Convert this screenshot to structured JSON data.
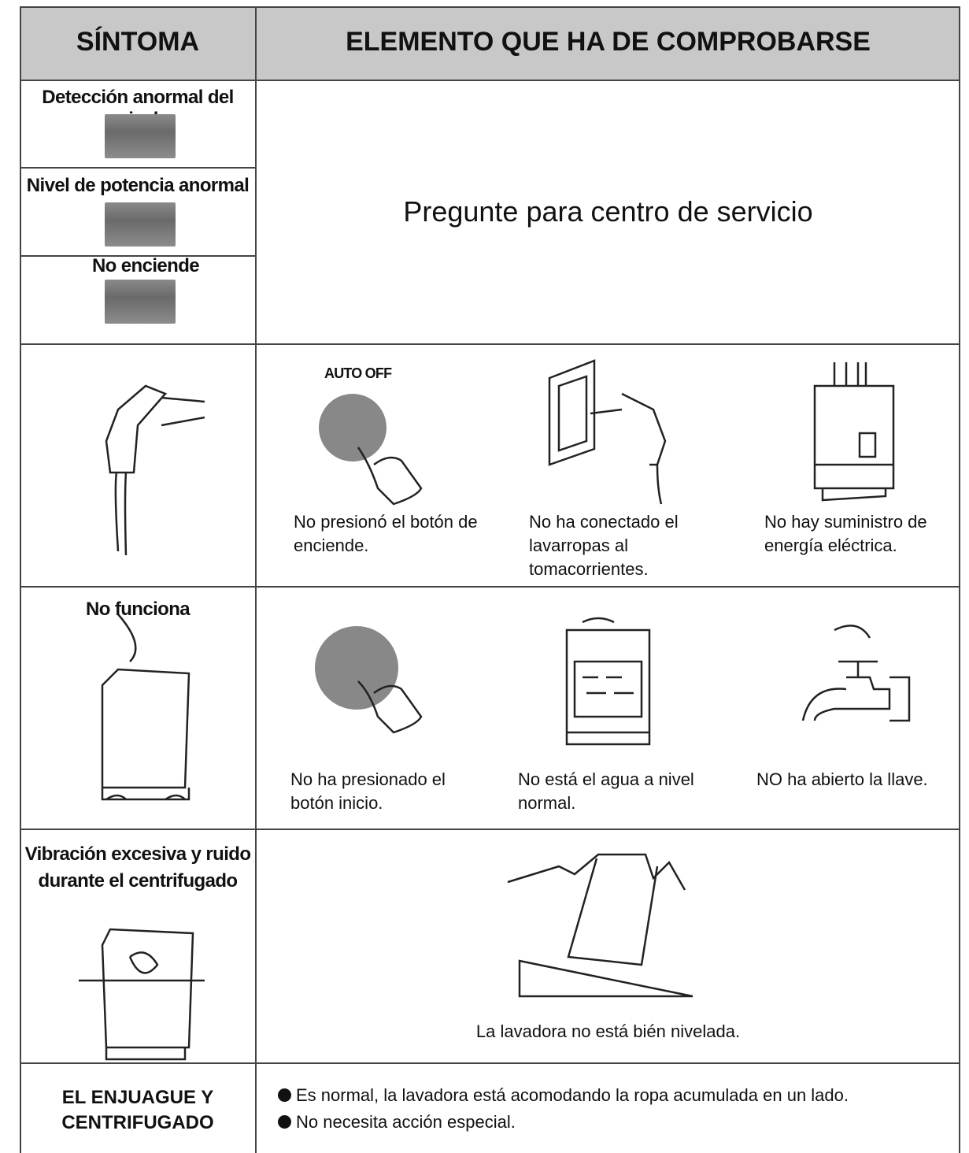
{
  "header": {
    "symptom": "SÍNTOMA",
    "check": "ELEMENTO QUE HA DE COMPROBARSE"
  },
  "rows": [
    {
      "symptoms": [
        "Detección anormal del nivel",
        "Nivel de potencia anormal",
        "No enciende"
      ],
      "check": "Pregunte para centro de servicio"
    },
    {
      "button_label": "AUTO OFF",
      "causes": [
        "No presionó el botón de enciende.",
        "No ha conectado el lavarropas al tomacorrientes.",
        "No hay suministro de energía eléctrica."
      ]
    },
    {
      "symptom": "No funciona",
      "causes": [
        "No ha presionado el botón inicio.",
        "No está el agua a nivel normal.",
        "NO ha abierto la llave."
      ]
    },
    {
      "symptom": "Vibración excesiva y ruido durante el centrifugado",
      "causes": [
        "La lavadora no está bién nivelada."
      ]
    },
    {
      "symptom": "EL ENJUAGUE Y CENTRIFUGADO",
      "causes": [
        "Es normal, la lavadora está acomodando la ropa acumulada en un lado.",
        "No necesita acción especial."
      ]
    }
  ]
}
